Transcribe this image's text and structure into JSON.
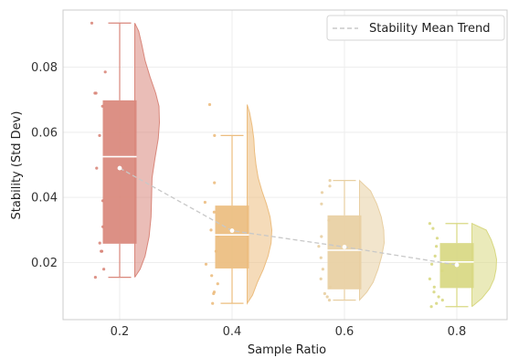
{
  "chart_data": {
    "type": "box",
    "xlabel": "Sample Ratio",
    "ylabel": "Stability (Std Dev)",
    "ylim": [
      0.0025,
      0.0975
    ],
    "yticks": [
      0.02,
      0.04,
      0.06,
      0.08
    ],
    "ytick_labels": [
      "0.02",
      "0.04",
      "0.06",
      "0.08"
    ],
    "grid": true,
    "legend": {
      "position": "top-right",
      "entries": [
        "Stability Mean Trend"
      ]
    },
    "trend": {
      "name": "Stability Mean Trend",
      "style": "dashed",
      "color": "#c8c8c8"
    },
    "groups": [
      {
        "x": "0.2",
        "color": "#d9877b",
        "min": 0.0155,
        "q1": 0.0258,
        "median": 0.0525,
        "q3": 0.0698,
        "max": 0.0935,
        "mean": 0.049,
        "points": [
          0.0935,
          0.0785,
          0.072,
          0.072,
          0.068,
          0.059,
          0.049,
          0.039,
          0.031,
          0.026,
          0.0235,
          0.0235,
          0.018,
          0.0155
        ],
        "density": [
          [
            0.0155,
            0.0
          ],
          [
            0.018,
            0.22
          ],
          [
            0.022,
            0.42
          ],
          [
            0.028,
            0.58
          ],
          [
            0.034,
            0.66
          ],
          [
            0.04,
            0.68
          ],
          [
            0.046,
            0.7
          ],
          [
            0.052,
            0.82
          ],
          [
            0.058,
            0.95
          ],
          [
            0.063,
            1.0
          ],
          [
            0.068,
            0.98
          ],
          [
            0.072,
            0.85
          ],
          [
            0.077,
            0.62
          ],
          [
            0.082,
            0.42
          ],
          [
            0.087,
            0.28
          ],
          [
            0.091,
            0.16
          ],
          [
            0.0935,
            0.0
          ]
        ]
      },
      {
        "x": "0.4",
        "color": "#ecbd7f",
        "min": 0.0075,
        "q1": 0.0182,
        "median": 0.0285,
        "q3": 0.0375,
        "max": 0.059,
        "mean": 0.0298,
        "points": [
          0.0685,
          0.059,
          0.0445,
          0.0385,
          0.0355,
          0.03,
          0.028,
          0.0235,
          0.0195,
          0.016,
          0.0135,
          0.011,
          0.0105,
          0.0075
        ],
        "density": [
          [
            0.0075,
            0.0
          ],
          [
            0.01,
            0.22
          ],
          [
            0.014,
            0.42
          ],
          [
            0.018,
            0.66
          ],
          [
            0.022,
            0.85
          ],
          [
            0.026,
            0.97
          ],
          [
            0.03,
            1.0
          ],
          [
            0.034,
            0.93
          ],
          [
            0.038,
            0.78
          ],
          [
            0.042,
            0.6
          ],
          [
            0.046,
            0.45
          ],
          [
            0.05,
            0.36
          ],
          [
            0.054,
            0.3
          ],
          [
            0.058,
            0.27
          ],
          [
            0.062,
            0.2
          ],
          [
            0.066,
            0.1
          ],
          [
            0.0685,
            0.0
          ]
        ]
      },
      {
        "x": "0.6",
        "color": "#e8cfa2",
        "min": 0.0085,
        "q1": 0.0118,
        "median": 0.0238,
        "q3": 0.0345,
        "max": 0.0452,
        "mean": 0.0248,
        "points": [
          0.0452,
          0.0435,
          0.0415,
          0.038,
          0.033,
          0.028,
          0.025,
          0.0215,
          0.018,
          0.015,
          0.0125,
          0.0105,
          0.0095,
          0.0085
        ],
        "density": [
          [
            0.0085,
            0.0
          ],
          [
            0.011,
            0.3
          ],
          [
            0.014,
            0.55
          ],
          [
            0.018,
            0.75
          ],
          [
            0.022,
            0.9
          ],
          [
            0.026,
            1.0
          ],
          [
            0.03,
            0.98
          ],
          [
            0.034,
            0.88
          ],
          [
            0.038,
            0.7
          ],
          [
            0.042,
            0.45
          ],
          [
            0.0452,
            0.0
          ]
        ]
      },
      {
        "x": "0.8",
        "color": "#d8d882",
        "min": 0.0065,
        "q1": 0.0122,
        "median": 0.0202,
        "q3": 0.026,
        "max": 0.032,
        "mean": 0.0193,
        "points": [
          0.032,
          0.0305,
          0.0275,
          0.025,
          0.022,
          0.0195,
          0.0175,
          0.015,
          0.0125,
          0.011,
          0.0095,
          0.0085,
          0.0075,
          0.0065
        ],
        "density": [
          [
            0.0065,
            0.0
          ],
          [
            0.009,
            0.4
          ],
          [
            0.012,
            0.72
          ],
          [
            0.015,
            0.9
          ],
          [
            0.018,
            0.98
          ],
          [
            0.021,
            1.0
          ],
          [
            0.024,
            0.92
          ],
          [
            0.027,
            0.78
          ],
          [
            0.03,
            0.58
          ],
          [
            0.032,
            0.0
          ]
        ]
      }
    ]
  }
}
